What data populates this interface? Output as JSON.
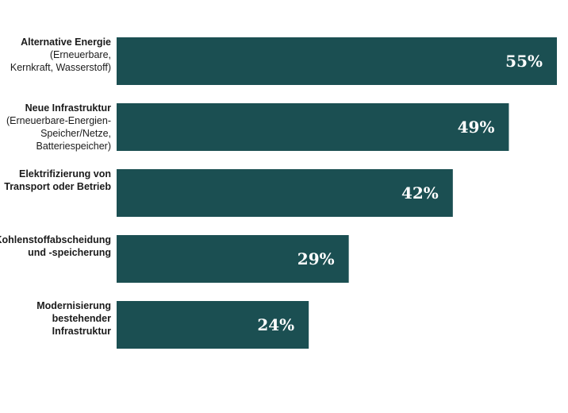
{
  "chart_data": {
    "type": "bar",
    "orientation": "horizontal",
    "categories": [
      {
        "bold": [
          "Alternative Energie"
        ],
        "regular": [
          "(Erneuerbare,",
          "Kernkraft, Wasserstoff)"
        ]
      },
      {
        "bold": [
          "Neue Infrastruktur"
        ],
        "regular": [
          "(Erneuerbare-Energien-",
          "Speicher/Netze,",
          "Batteriespeicher)"
        ]
      },
      {
        "bold": [
          "Elektrifizierung von",
          "Transport oder Betrieb"
        ],
        "regular": []
      },
      {
        "bold": [
          "Kohlenstoffabscheidung",
          "und -speicherung"
        ],
        "regular": []
      },
      {
        "bold": [
          "Modernisierung",
          "bestehender",
          "Infrastruktur"
        ],
        "regular": []
      }
    ],
    "values": [
      55,
      49,
      42,
      29,
      24
    ],
    "value_labels": [
      "55%",
      "49%",
      "42%",
      "29%",
      "24%"
    ],
    "xlim": [
      0,
      55
    ],
    "bar_color": "#1b4f52",
    "label_color": "#ffffff",
    "title": "",
    "xlabel": "",
    "ylabel": "",
    "grid": false
  }
}
